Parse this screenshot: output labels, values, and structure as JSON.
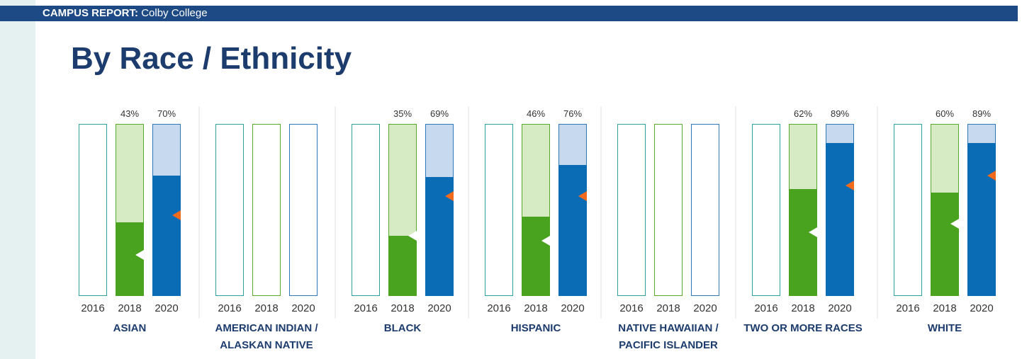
{
  "header": {
    "label": "CAMPUS REPORT:",
    "school": "Colby College"
  },
  "chart_data": {
    "type": "bar",
    "title": "By Race / Ethnicity",
    "years": [
      2016,
      2018,
      2020
    ],
    "ylim": [
      0,
      100
    ],
    "colors": {
      "outline": [
        "#2aa3a0",
        "#5aaa2a",
        "#2f78b9"
      ],
      "fill": [
        null,
        "#4aa31e",
        "#0a6cb5"
      ],
      "background": [
        null,
        "#d6eac4",
        "#c6d9ee"
      ],
      "marker": [
        null,
        "#ffffff",
        "#f26a1b"
      ]
    },
    "groups": [
      {
        "label": "ASIAN",
        "values": [
          null,
          43,
          70
        ],
        "value_labels": [
          null,
          "43%",
          "70%"
        ],
        "markers": [
          null,
          24,
          47
        ]
      },
      {
        "label": "AMERICAN INDIAN / ALASKAN NATIVE",
        "values": [
          null,
          null,
          null
        ],
        "value_labels": [
          null,
          null,
          null
        ],
        "markers": [
          null,
          null,
          null
        ]
      },
      {
        "label": "BLACK",
        "values": [
          null,
          35,
          69
        ],
        "value_labels": [
          null,
          "35%",
          "69%"
        ],
        "markers": [
          null,
          35,
          58
        ]
      },
      {
        "label": "HISPANIC",
        "values": [
          null,
          46,
          76
        ],
        "value_labels": [
          null,
          "46%",
          "76%"
        ],
        "markers": [
          null,
          32,
          58
        ]
      },
      {
        "label": "NATIVE HAWAIIAN / PACIFIC ISLANDER",
        "values": [
          null,
          null,
          null
        ],
        "value_labels": [
          null,
          null,
          null
        ],
        "markers": [
          null,
          null,
          null
        ]
      },
      {
        "label": "TWO OR MORE RACES",
        "values": [
          null,
          62,
          89
        ],
        "value_labels": [
          null,
          "62%",
          "89%"
        ],
        "markers": [
          null,
          37,
          64
        ]
      },
      {
        "label": "WHITE",
        "values": [
          null,
          60,
          89
        ],
        "value_labels": [
          null,
          "60%",
          "89%"
        ],
        "markers": [
          null,
          42,
          70
        ]
      }
    ]
  }
}
